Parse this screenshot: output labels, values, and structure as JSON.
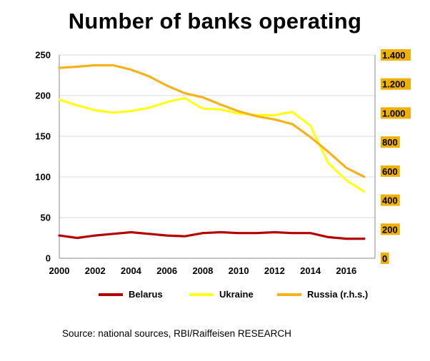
{
  "chart_data": {
    "type": "line",
    "title": "Number of banks operating",
    "x": [
      2000,
      2001,
      2002,
      2003,
      2004,
      2005,
      2006,
      2007,
      2008,
      2009,
      2010,
      2011,
      2012,
      2013,
      2014,
      2015,
      2016,
      2017
    ],
    "xticks": [
      "2000",
      "2002",
      "2004",
      "2006",
      "2008",
      "2010",
      "2012",
      "2014",
      "2016"
    ],
    "xlim": [
      2000,
      2017.6
    ],
    "y_left": {
      "ylim": [
        0,
        250
      ],
      "ticks": [
        "0",
        "50",
        "100",
        "150",
        "200",
        "250"
      ],
      "tick_values": [
        0,
        50,
        100,
        150,
        200,
        250
      ]
    },
    "y_right": {
      "ylim": [
        0,
        1400
      ],
      "ticks": [
        "0",
        "200",
        "400",
        "600",
        "800",
        "1.000",
        "1.200",
        "1.400"
      ],
      "tick_values": [
        0,
        200,
        400,
        600,
        800,
        1000,
        1200,
        1400
      ],
      "tick_bg": "#f0b000"
    },
    "series": [
      {
        "name": "Belarus",
        "axis": "left",
        "color": "#b30000",
        "values": [
          28,
          25,
          28,
          30,
          32,
          30,
          28,
          27,
          31,
          32,
          31,
          31,
          32,
          31,
          31,
          26,
          24,
          24
        ]
      },
      {
        "name": "Ukraine",
        "axis": "left",
        "color": "#ffff1a",
        "values": [
          195,
          188,
          182,
          179,
          181,
          185,
          192,
          197,
          184,
          183,
          178,
          176,
          176,
          180,
          163,
          117,
          96,
          82
        ]
      },
      {
        "name": "Russia (r.h.s.)",
        "axis": "right",
        "color": "#f5b21b",
        "values": [
          1311,
          1319,
          1329,
          1329,
          1299,
          1253,
          1189,
          1136,
          1108,
          1058,
          1012,
          978,
          956,
          923,
          834,
          733,
          623,
          561
        ]
      }
    ],
    "grid": "horizontal",
    "legend": "bottom",
    "source": "Source: national sources, RBI/Raiffeisen RESEARCH"
  }
}
